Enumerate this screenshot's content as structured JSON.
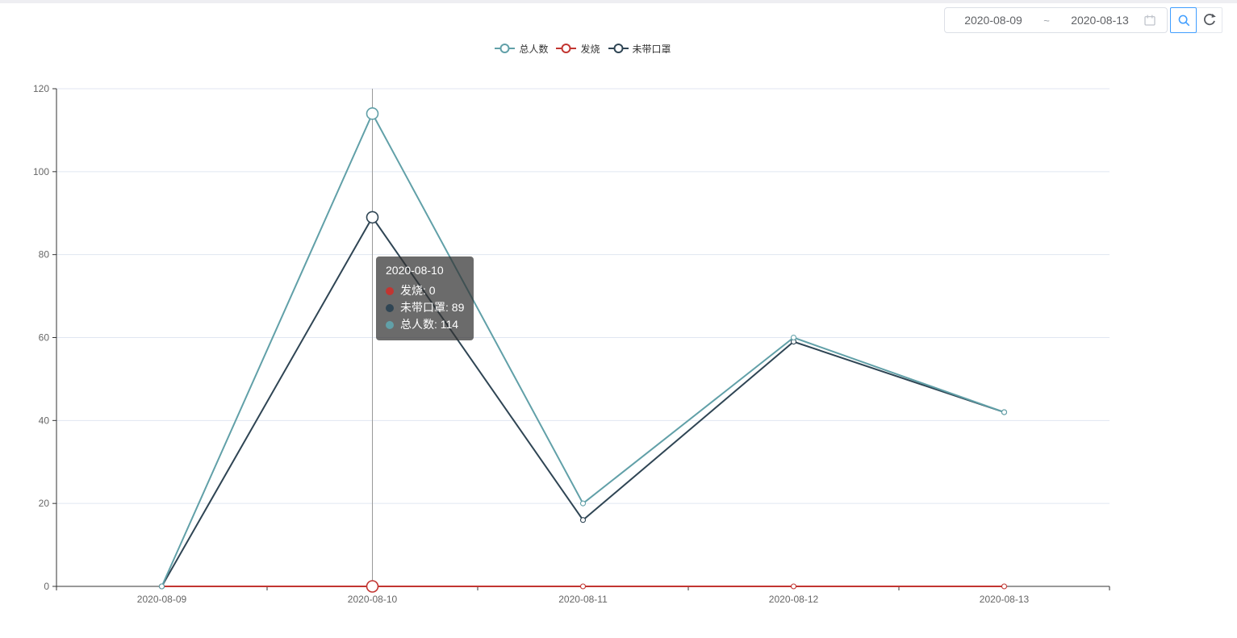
{
  "controls": {
    "date_range": {
      "start": "2020-08-09",
      "separator": "~",
      "end": "2020-08-13"
    },
    "accent_color": "#409eff"
  },
  "legend": {
    "items": [
      {
        "label": "总人数",
        "color": "#61a0a8"
      },
      {
        "label": "发烧",
        "color": "#c23531"
      },
      {
        "label": "未带口罩",
        "color": "#2f4554"
      }
    ]
  },
  "tooltip": {
    "title": "2020-08-10",
    "rows": [
      {
        "text": "发烧: 0",
        "color": "#c23531"
      },
      {
        "text": "未带口罩: 89",
        "color": "#2f4554"
      },
      {
        "text": "总人数: 114",
        "color": "#61a0a8"
      }
    ]
  },
  "chart_data": {
    "type": "line",
    "title": "",
    "xlabel": "",
    "ylabel": "",
    "categories": [
      "2020-08-09",
      "2020-08-10",
      "2020-08-11",
      "2020-08-12",
      "2020-08-13"
    ],
    "series": [
      {
        "name": "发烧",
        "color": "#c23531",
        "values": [
          0,
          0,
          0,
          0,
          0
        ]
      },
      {
        "name": "未带口罩",
        "color": "#2f4554",
        "values": [
          0,
          89,
          16,
          59,
          42
        ]
      },
      {
        "name": "总人数",
        "color": "#61a0a8",
        "values": [
          0,
          114,
          20,
          60,
          42
        ]
      }
    ],
    "ylim": [
      0,
      120
    ],
    "yticks": [
      0,
      20,
      40,
      60,
      80,
      100,
      120
    ],
    "ytick_step": 20,
    "grid": true,
    "legend_position": "top-center",
    "hover_index": 1,
    "grid_color": "#e0e6f1",
    "axis_color": "#333333",
    "label_color": "#666666",
    "axis_pointer_color": "#999999"
  }
}
